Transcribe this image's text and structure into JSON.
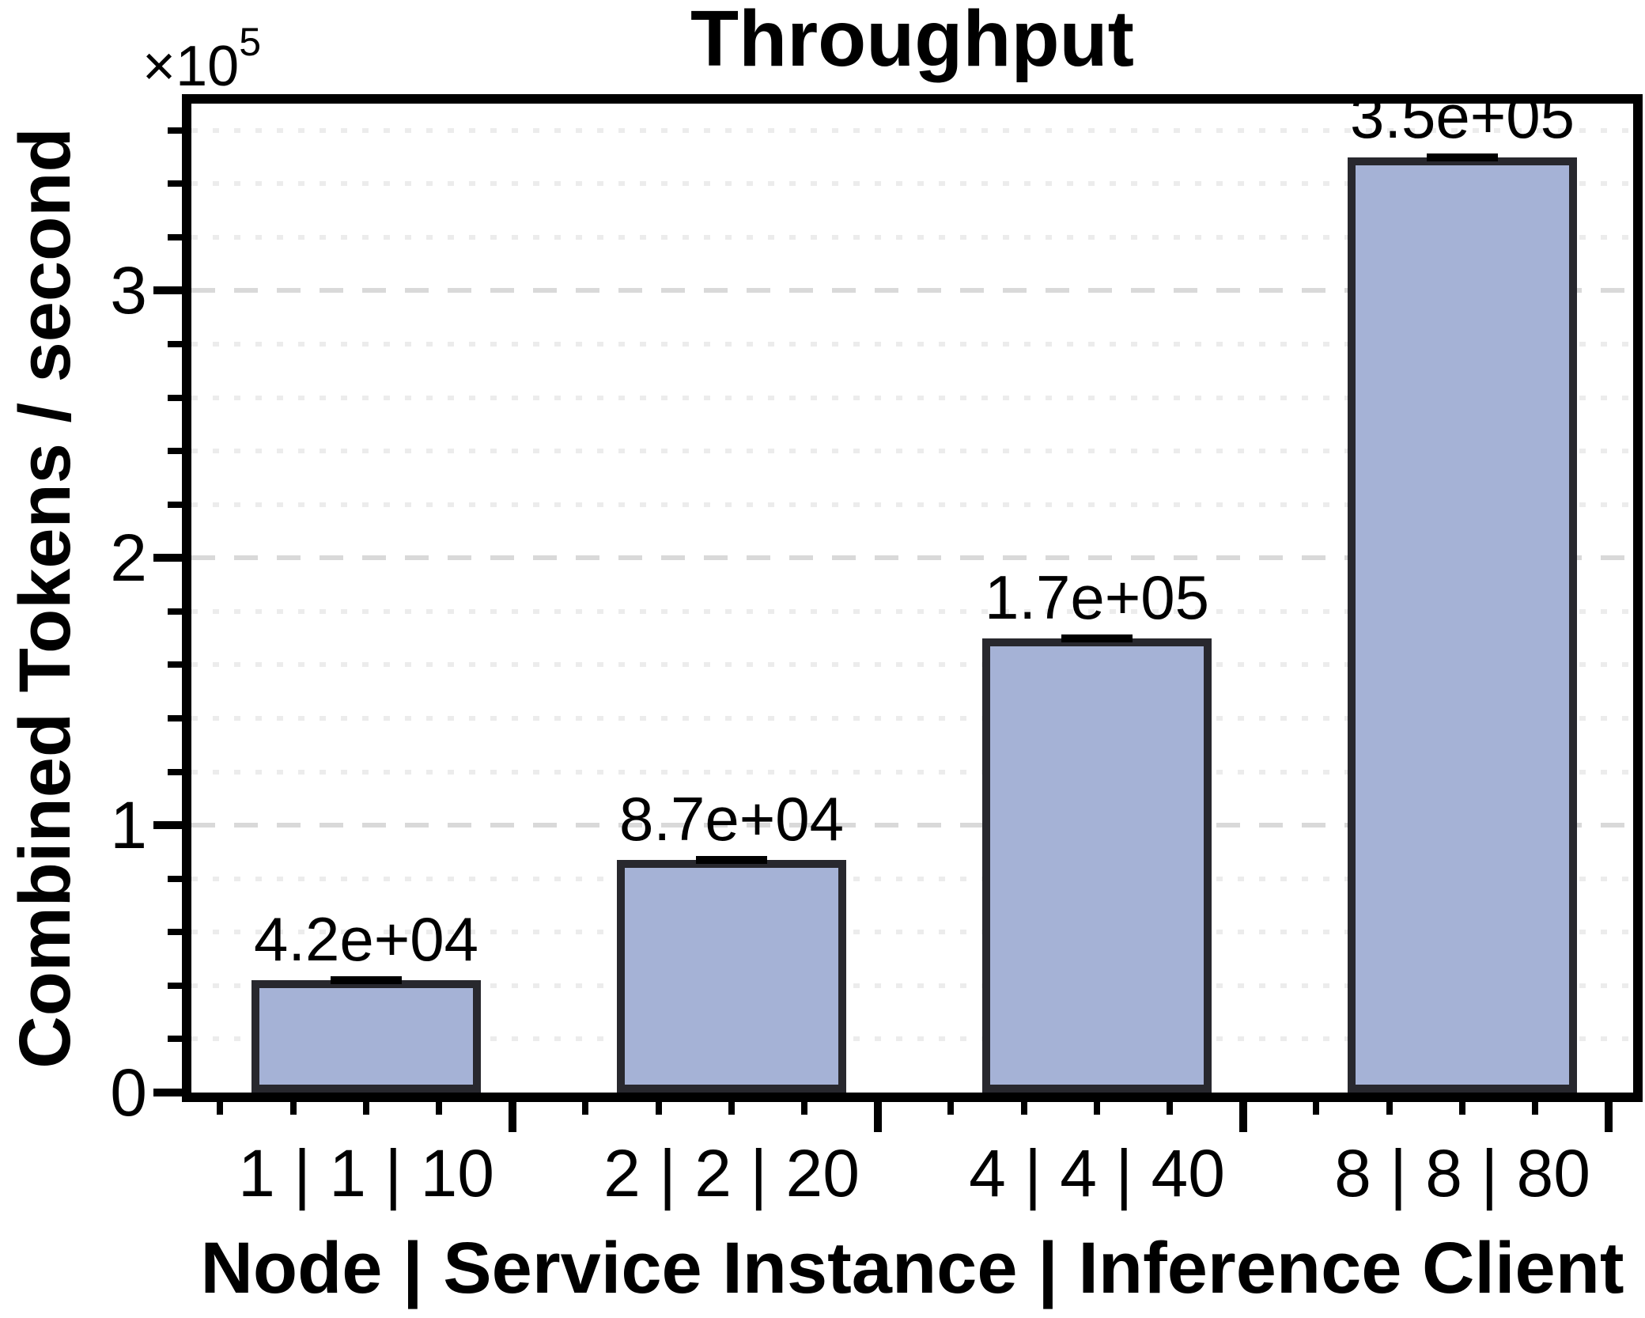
{
  "chart_data": {
    "type": "bar",
    "title": "Throughput",
    "xlabel": "Node | Service Instance | Inference Client",
    "ylabel": "Combined Tokens / second",
    "offset_base": "×10",
    "offset_exponent": "5",
    "categories": [
      "1 | 1 | 10",
      "2 | 2 | 20",
      "4 | 4 | 40",
      "8 | 8 | 80"
    ],
    "values": [
      42000,
      87000,
      170000,
      350000
    ],
    "bar_labels": [
      "4.2e+04",
      "8.7e+04",
      "1.7e+05",
      "3.5e+05"
    ],
    "errors": [
      1500,
      1800,
      2500,
      3500
    ],
    "ylim": [
      0,
      370000
    ],
    "ytick_values": [
      0,
      100000,
      200000,
      300000
    ],
    "ytick_labels": [
      "0",
      "1",
      "2",
      "3"
    ],
    "y_minor_step": 20000,
    "grid": "horizontal only: major dashed, minor dotted",
    "legend": "none",
    "colors": {
      "bar_fill": "#a5b2d6",
      "bar_edge": "#28282e",
      "axis": "#000000",
      "grid_major": "#d9d9d9",
      "grid_minor": "#ececec",
      "error_bar": "#000000",
      "background": "#ffffff"
    }
  }
}
